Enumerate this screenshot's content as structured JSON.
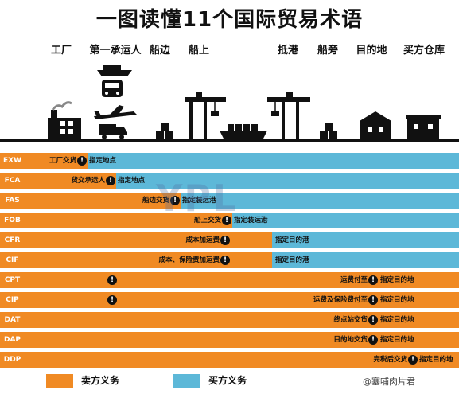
{
  "title": "一图读懂11个国际贸易术语",
  "stages": [
    "工厂",
    "第一承运人",
    "船边",
    "船上",
    "抵港",
    "船旁",
    "目的地",
    "买方仓库"
  ],
  "terms": [
    {
      "code": "EXW",
      "seller_label": "工厂交货",
      "buyer_label": "指定地点"
    },
    {
      "code": "FCA",
      "seller_label": "货交承运人",
      "buyer_label": "指定地点"
    },
    {
      "code": "FAS",
      "seller_label": "船边交货",
      "buyer_label": "指定装运港"
    },
    {
      "code": "FOB",
      "seller_label": "船上交货",
      "buyer_label": "指定装运港"
    },
    {
      "code": "CFR",
      "seller_label": "成本加运费",
      "buyer_label": "指定目的港"
    },
    {
      "code": "CIF",
      "seller_label": "成本、保险费加运费",
      "buyer_label": "指定目的港"
    },
    {
      "code": "CPT",
      "seller_label": "运费付至",
      "buyer_label": "指定目的地"
    },
    {
      "code": "CIP",
      "seller_label": "运费及保险费付至",
      "buyer_label": "指定目的地"
    },
    {
      "code": "DAT",
      "seller_label": "终点站交货",
      "buyer_label": "指定目的地"
    },
    {
      "code": "DAP",
      "seller_label": "目的地交货",
      "buyer_label": "指定目的地"
    },
    {
      "code": "DDP",
      "seller_label": "完税后交货",
      "buyer_label": "指定目的地"
    }
  ],
  "legend": {
    "seller": "卖方义务",
    "buyer": "买方义务"
  },
  "watermark": "YPL",
  "watermark2": "@塞哺肉片君",
  "colors": {
    "seller": "#f08a24",
    "buyer": "#5db8d8"
  }
}
